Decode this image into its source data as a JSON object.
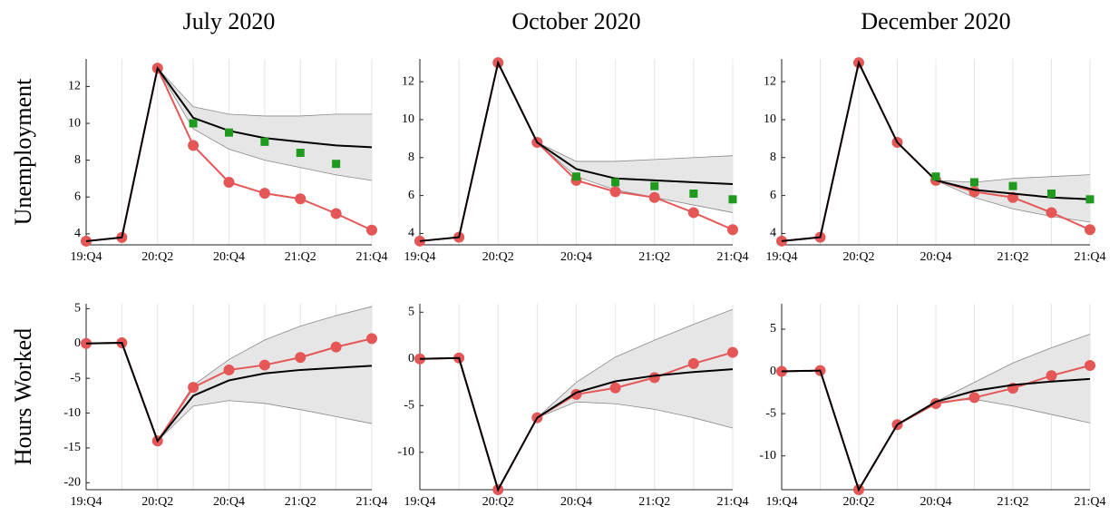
{
  "chart_data": [
    {
      "type": "line",
      "title": "July 2020",
      "ylabel": "Unemployment",
      "categories": [
        "19:Q4",
        null,
        "20:Q2",
        null,
        "20:Q4",
        null,
        "21:Q2",
        null,
        "21:Q4"
      ],
      "ylim": [
        3.4,
        13.5
      ],
      "yticks": [
        4,
        6,
        8,
        10,
        12
      ],
      "grid": "x",
      "band": {
        "color": "#e6e6e6",
        "lower": [
          null,
          null,
          13.0,
          9.7,
          8.6,
          8.0,
          7.6,
          7.2,
          6.9
        ],
        "upper": [
          null,
          null,
          13.0,
          10.9,
          10.5,
          10.4,
          10.4,
          10.5,
          10.5
        ]
      },
      "series": [
        {
          "color": "#e45756",
          "marker": "circle",
          "values": [
            3.6,
            3.8,
            13.0,
            8.8,
            6.8,
            6.2,
            5.9,
            5.1,
            4.2
          ]
        },
        {
          "color": "#000000",
          "values": [
            3.6,
            3.8,
            13.0,
            10.3,
            9.6,
            9.2,
            9.0,
            8.8,
            8.7
          ]
        },
        {
          "color": "#1f9a1f",
          "marker": "square",
          "values": [
            null,
            null,
            null,
            10.0,
            9.5,
            9.0,
            8.4,
            7.8,
            null
          ]
        }
      ]
    },
    {
      "type": "line",
      "title": "October 2020",
      "categories": [
        "19:Q4",
        null,
        "20:Q2",
        null,
        "20:Q4",
        null,
        "21:Q2",
        null,
        "21:Q4"
      ],
      "ylim": [
        3.4,
        13.2
      ],
      "yticks": [
        4,
        6,
        8,
        10,
        12
      ],
      "grid": "x",
      "band": {
        "color": "#e6e6e6",
        "lower": [
          null,
          null,
          null,
          8.8,
          7.0,
          6.3,
          5.9,
          5.5,
          5.1
        ],
        "upper": [
          null,
          null,
          null,
          8.8,
          7.8,
          7.8,
          7.9,
          8.0,
          8.1
        ]
      },
      "series": [
        {
          "color": "#e45756",
          "marker": "circle",
          "values": [
            3.6,
            3.8,
            13.0,
            8.8,
            6.8,
            6.2,
            5.9,
            5.1,
            4.2
          ]
        },
        {
          "color": "#000000",
          "values": [
            3.6,
            3.8,
            13.0,
            8.8,
            7.4,
            6.9,
            6.8,
            6.7,
            6.6
          ]
        },
        {
          "color": "#1f9a1f",
          "marker": "square",
          "values": [
            null,
            null,
            null,
            null,
            7.0,
            6.7,
            6.5,
            6.1,
            5.8
          ]
        }
      ]
    },
    {
      "type": "line",
      "title": "December 2020",
      "categories": [
        "19:Q4",
        null,
        "20:Q2",
        null,
        "20:Q4",
        null,
        "21:Q2",
        null,
        "21:Q4"
      ],
      "ylim": [
        3.4,
        13.2
      ],
      "yticks": [
        4,
        6,
        8,
        10,
        12
      ],
      "grid": "x",
      "band": {
        "color": "#e6e6e6",
        "lower": [
          null,
          null,
          null,
          null,
          6.8,
          5.9,
          5.3,
          4.9,
          4.6
        ],
        "upper": [
          null,
          null,
          null,
          null,
          6.8,
          6.7,
          6.9,
          7.0,
          7.1
        ]
      },
      "series": [
        {
          "color": "#e45756",
          "marker": "circle",
          "values": [
            3.6,
            3.8,
            13.0,
            8.8,
            6.8,
            6.2,
            5.9,
            5.1,
            4.2
          ]
        },
        {
          "color": "#000000",
          "values": [
            3.6,
            3.8,
            13.0,
            8.8,
            6.8,
            6.3,
            6.1,
            5.9,
            5.8
          ]
        },
        {
          "color": "#1f9a1f",
          "marker": "square",
          "values": [
            null,
            null,
            null,
            null,
            7.0,
            6.7,
            6.5,
            6.1,
            5.8
          ]
        }
      ]
    },
    {
      "type": "line",
      "ylabel": "Hours Worked",
      "categories": [
        "19:Q4",
        null,
        "20:Q2",
        null,
        "20:Q4",
        null,
        "21:Q2",
        null,
        "21:Q4"
      ],
      "ylim": [
        -21,
        5.7
      ],
      "yticks": [
        5,
        0,
        -5,
        -10,
        -15,
        -20
      ],
      "grid": "x",
      "band": {
        "color": "#e6e6e6",
        "lower": [
          null,
          null,
          -14,
          -9.0,
          -8.2,
          -8.6,
          -9.5,
          -10.5,
          -11.5
        ],
        "upper": [
          null,
          null,
          -14,
          -6.0,
          -2.3,
          0.5,
          2.5,
          4.0,
          5.3
        ]
      },
      "series": [
        {
          "color": "#e45756",
          "marker": "circle",
          "values": [
            0,
            0.1,
            -14,
            -6.3,
            -3.8,
            -3.1,
            -2.0,
            -0.5,
            0.7
          ]
        },
        {
          "color": "#000000",
          "values": [
            0,
            0.1,
            -14,
            -7.5,
            -5.3,
            -4.3,
            -3.8,
            -3.5,
            -3.2
          ]
        }
      ]
    },
    {
      "type": "line",
      "categories": [
        "19:Q4",
        null,
        "20:Q2",
        null,
        "20:Q4",
        null,
        "21:Q2",
        null,
        "21:Q4"
      ],
      "ylim": [
        -14,
        5.9
      ],
      "yticks": [
        5,
        0,
        -5,
        -10
      ],
      "grid": "x",
      "band": {
        "color": "#e6e6e6",
        "lower": [
          null,
          null,
          null,
          -6.3,
          -4.6,
          -4.8,
          -5.4,
          -6.3,
          -7.4
        ],
        "upper": [
          null,
          null,
          null,
          -6.3,
          -2.5,
          0.2,
          2.0,
          3.7,
          5.3
        ]
      },
      "series": [
        {
          "color": "#e45756",
          "marker": "circle",
          "values": [
            0,
            0.1,
            -14,
            -6.3,
            -3.8,
            -3.1,
            -2.0,
            -0.5,
            0.7
          ]
        },
        {
          "color": "#000000",
          "values": [
            0,
            0.1,
            -14,
            -6.3,
            -3.6,
            -2.4,
            -1.8,
            -1.4,
            -1.1
          ]
        }
      ]
    },
    {
      "type": "line",
      "categories": [
        "19:Q4",
        null,
        "20:Q2",
        null,
        "20:Q4",
        null,
        "21:Q2",
        null,
        "21:Q4"
      ],
      "ylim": [
        -14,
        8
      ],
      "yticks": [
        5,
        0,
        -5,
        -10
      ],
      "grid": "x",
      "band": {
        "color": "#e6e6e6",
        "lower": [
          null,
          null,
          null,
          null,
          -3.6,
          -3.3,
          -4.1,
          -5.1,
          -6.1
        ],
        "upper": [
          null,
          null,
          null,
          null,
          -3.6,
          -1.3,
          1.0,
          2.8,
          4.4
        ]
      },
      "series": [
        {
          "color": "#e45756",
          "marker": "circle",
          "values": [
            0,
            0.1,
            -14,
            -6.3,
            -3.8,
            -3.1,
            -2.0,
            -0.5,
            0.7
          ]
        },
        {
          "color": "#000000",
          "values": [
            0,
            0.1,
            -14,
            -6.3,
            -3.6,
            -2.3,
            -1.6,
            -1.2,
            -0.9
          ]
        }
      ]
    }
  ]
}
